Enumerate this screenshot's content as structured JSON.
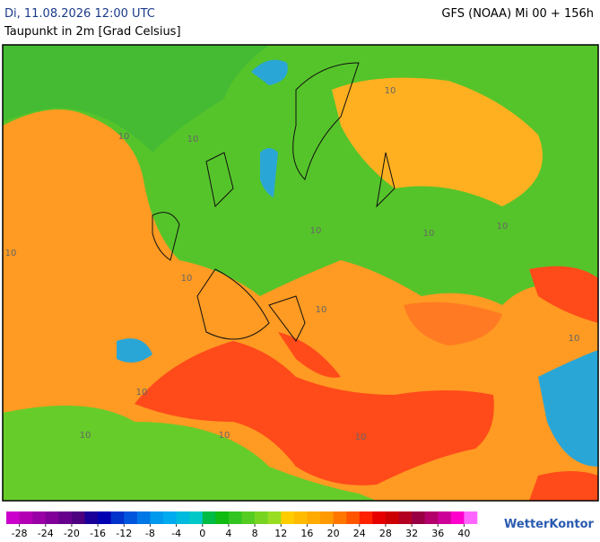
{
  "header": {
    "date": "Di, 11.08.2026 12:00 UTC",
    "model": "GFS (NOAA) Mi 00 + 156h",
    "subtitle": "Taupunkt in 2m [Grad Celsius]"
  },
  "map": {
    "contour_labels": [
      "10",
      "10",
      "10",
      "10",
      "10",
      "10",
      "10",
      "10",
      "10",
      "10",
      "10",
      "10",
      "10",
      "10"
    ]
  },
  "legend": {
    "range": [
      -30,
      42
    ],
    "colors": [
      "#cc00cc",
      "#b300b3",
      "#9900a6",
      "#800099",
      "#66008c",
      "#4d0080",
      "#1a0099",
      "#0000b3",
      "#0033cc",
      "#0055dd",
      "#0077e6",
      "#0099ee",
      "#00aaee",
      "#00bbdd",
      "#00c8c8",
      "#00bb44",
      "#11bb11",
      "#33c422",
      "#55cc22",
      "#77d522",
      "#99dd22",
      "#ffcc00",
      "#ffbb00",
      "#ffaa00",
      "#ff9900",
      "#ff7700",
      "#ff5500",
      "#ff2200",
      "#e60000",
      "#cc0000",
      "#b30022",
      "#990044",
      "#b3006b",
      "#cc0099",
      "#ff00cc",
      "#ff66ff"
    ],
    "ticks": [
      -28,
      -24,
      -20,
      -16,
      -12,
      -8,
      -4,
      0,
      4,
      8,
      12,
      16,
      20,
      24,
      28,
      32,
      36,
      40
    ]
  },
  "brand": "WetterKontor"
}
